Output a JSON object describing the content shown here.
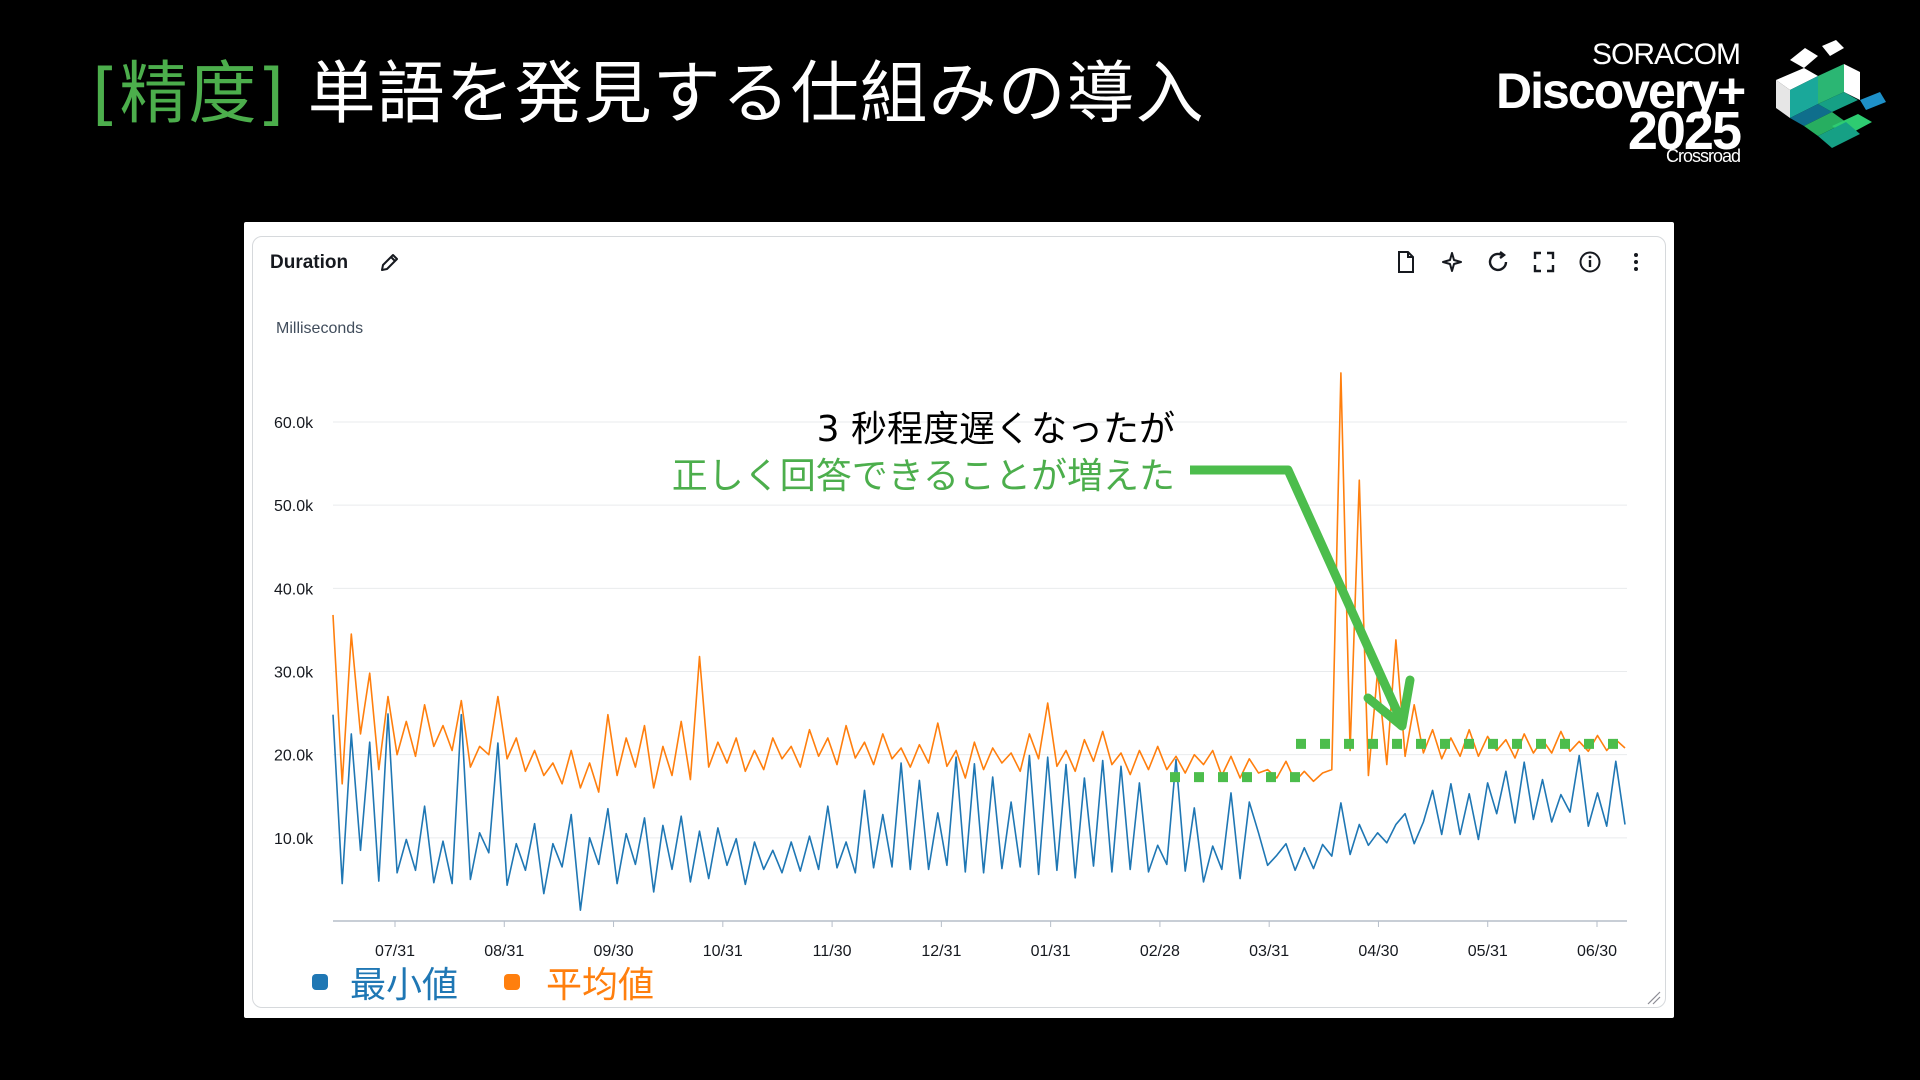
{
  "slide": {
    "title_tag": "[精度]",
    "title_main": " 単語を発見する仕組みの導入",
    "colors": {
      "tag": "#4cae4c",
      "title": "#ffffff",
      "background": "#000000"
    }
  },
  "brand": {
    "top": "SORACOM",
    "mid": "Discovery+",
    "year": "2025",
    "sub": "Crossroad"
  },
  "panel": {
    "title": "Duration",
    "icons": [
      "edit-icon",
      "document-icon",
      "sparkle-icon",
      "refresh-icon",
      "fullscreen-icon",
      "info-icon",
      "more-icon",
      "resize-handle-icon"
    ]
  },
  "annotation": {
    "line1": "3 秒程度遅くなったが",
    "line2": "正しく回答できることが増えた",
    "color_line1": "#000000",
    "color_line2": "#4cae4c",
    "arrow_color": "#4cbd4c"
  },
  "chart_data": {
    "type": "line",
    "ylabel": "Milliseconds",
    "ylim": [
      0,
      68000
    ],
    "y_ticks": [
      "10.0k",
      "20.0k",
      "30.0k",
      "40.0k",
      "50.0k",
      "60.0k"
    ],
    "y_tick_values": [
      10000,
      20000,
      30000,
      40000,
      50000,
      60000
    ],
    "x_ticks": [
      "07/31",
      "08/31",
      "09/30",
      "10/31",
      "11/30",
      "12/31",
      "01/31",
      "02/28",
      "03/31",
      "04/30",
      "05/31",
      "06/30"
    ],
    "grid": "horizontal",
    "legend_position": "bottom-left",
    "series": [
      {
        "name": "最小値",
        "color": "#1f77b4",
        "values": [
          24800,
          4500,
          22500,
          8500,
          21500,
          4800,
          24900,
          5800,
          9800,
          6100,
          13800,
          4600,
          9600,
          4500,
          24800,
          5000,
          10600,
          8200,
          21400,
          4300,
          9300,
          6100,
          11700,
          3300,
          9300,
          6500,
          12800,
          1300,
          10000,
          6800,
          13500,
          4500,
          10500,
          6800,
          12400,
          3500,
          11500,
          6200,
          12600,
          4700,
          10800,
          5100,
          11200,
          6700,
          9900,
          4400,
          9500,
          6200,
          8500,
          5800,
          9500,
          6000,
          10200,
          6200,
          13800,
          6400,
          9500,
          5800,
          15700,
          6400,
          12800,
          6500,
          19000,
          6200,
          16900,
          6200,
          13000,
          6700,
          19700,
          5900,
          18900,
          5800,
          17300,
          6300,
          14300,
          6500,
          19900,
          5600,
          19700,
          6100,
          18800,
          5200,
          17200,
          6600,
          19300,
          5900,
          18600,
          6200,
          16600,
          5900,
          9100,
          6800,
          19400,
          6000,
          13600,
          4700,
          9000,
          6200,
          15400,
          5100,
          14300,
          10600,
          6700,
          7900,
          9300,
          6100,
          8800,
          6300,
          9200,
          7800,
          14200,
          8000,
          11600,
          9100,
          10600,
          9400,
          11600,
          12900,
          9300,
          11900,
          15700,
          10400,
          16500,
          10400,
          15300,
          9800,
          16600,
          12900,
          18000,
          11800,
          19100,
          12200,
          17000,
          11900,
          15200,
          13100,
          19900,
          11400,
          15400,
          11400,
          19200,
          11600
        ]
      },
      {
        "name": "平均値",
        "color": "#ff7f0e",
        "values": [
          36800,
          16500,
          34500,
          22500,
          29800,
          18200,
          27000,
          20000,
          24000,
          19800,
          26000,
          21000,
          23500,
          20500,
          26500,
          18500,
          21000,
          20000,
          27000,
          19500,
          22000,
          18000,
          20500,
          17500,
          19000,
          16500,
          20500,
          16000,
          19000,
          15500,
          24800,
          17500,
          22000,
          18500,
          23500,
          16000,
          21000,
          17500,
          24000,
          17000,
          31800,
          18500,
          21500,
          19000,
          22000,
          18000,
          20500,
          18200,
          22000,
          19500,
          21000,
          18500,
          23000,
          19800,
          22000,
          18800,
          23500,
          19600,
          21500,
          18800,
          22500,
          19500,
          20800,
          18500,
          21200,
          19000,
          23800,
          18600,
          20500,
          17200,
          21500,
          18200,
          20800,
          19000,
          20200,
          18000,
          22500,
          19500,
          26200,
          18600,
          20500,
          18000,
          21800,
          19200,
          22800,
          18800,
          20200,
          17600,
          20500,
          18200,
          21000,
          18200,
          19800,
          17800,
          20000,
          18800,
          20500,
          17500,
          19800,
          17200,
          19500,
          17800,
          18200,
          17200,
          19200,
          16800,
          18000,
          16800,
          17800,
          18200,
          65900,
          20500,
          53000,
          17500,
          30000,
          18800,
          33800,
          19800,
          26000,
          20200,
          23000,
          19500,
          22000,
          19800,
          23000,
          19800,
          22200,
          20500,
          21800,
          19600,
          22500,
          20200,
          21800,
          20200,
          22800,
          20400,
          21600,
          20400,
          22300,
          20500,
          21800,
          20800
        ]
      }
    ],
    "annotation_levels": [
      {
        "label": "before",
        "value": 17300
      },
      {
        "label": "after",
        "value": 21300
      }
    ]
  }
}
